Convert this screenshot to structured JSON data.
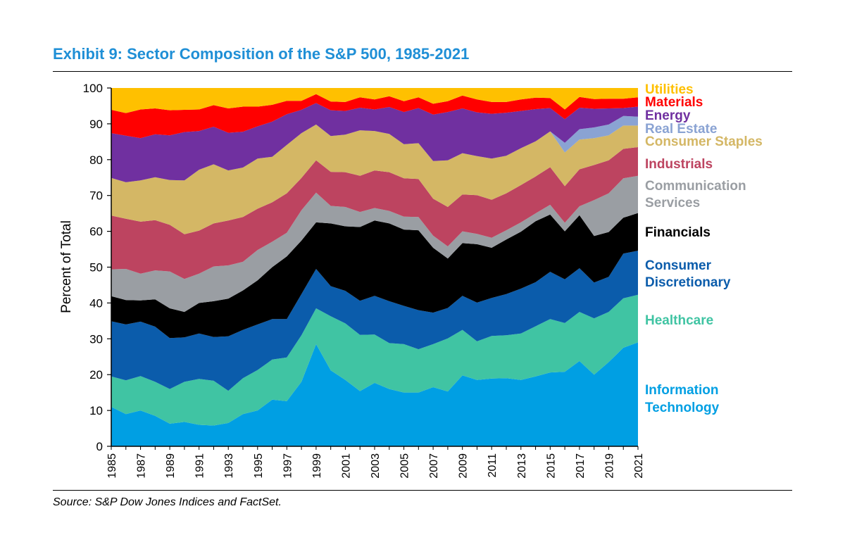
{
  "header": {
    "title": "Exhibit 9: Sector Composition of the S&P 500, 1985-2021"
  },
  "footer": {
    "source": "Source: S&P Dow Jones Indices and FactSet."
  },
  "chart_data": {
    "type": "area",
    "stacked": true,
    "title": "Exhibit 9: Sector Composition of the S&P 500, 1985-2021",
    "xlabel": "",
    "ylabel": "Percent of Total",
    "ylim": [
      0,
      100
    ],
    "yticks": [
      0,
      10,
      20,
      30,
      40,
      50,
      60,
      70,
      80,
      90,
      100
    ],
    "xticks": [
      1985,
      1987,
      1989,
      1991,
      1993,
      1995,
      1997,
      1999,
      2001,
      2003,
      2005,
      2007,
      2009,
      2011,
      2013,
      2015,
      2017,
      2019,
      2021
    ],
    "legend_position": "right",
    "grid": false,
    "x": [
      1985,
      1986,
      1987,
      1988,
      1989,
      1990,
      1991,
      1992,
      1993,
      1994,
      1995,
      1996,
      1997,
      1998,
      1999,
      2000,
      2001,
      2002,
      2003,
      2004,
      2005,
      2006,
      2007,
      2008,
      2009,
      2010,
      2011,
      2012,
      2013,
      2014,
      2015,
      2016,
      2017,
      2018,
      2019,
      2020,
      2021
    ],
    "series": [
      {
        "name": "Information Technology",
        "color": "#009fe3",
        "values": [
          11,
          9,
          10,
          8.5,
          6.3,
          6.8,
          6,
          5.8,
          6.5,
          9,
          10,
          13,
          12.6,
          18,
          28.5,
          21.2,
          18.5,
          15.4,
          17.7,
          16,
          15,
          15,
          16.5,
          15.3,
          19.8,
          18.5,
          18.9,
          19,
          18.5,
          19.5,
          20.6,
          20.8,
          23.8,
          20,
          23.5,
          27.5,
          29
        ]
      },
      {
        "name": "Healthcare",
        "color": "#40c4a3",
        "values": [
          8.5,
          9.4,
          9.6,
          9.5,
          9.7,
          11.2,
          12.8,
          12.5,
          9,
          10,
          11.3,
          11.2,
          12.2,
          13,
          10,
          15.1,
          15.8,
          15.7,
          13.5,
          12.8,
          13.5,
          12.1,
          12,
          14.8,
          12.7,
          10.8,
          11.9,
          12,
          13,
          14,
          14.9,
          13.6,
          13.7,
          15.7,
          14,
          13.8,
          13.3
        ]
      },
      {
        "name": "Consumer Discretionary",
        "color": "#0b5cab",
        "values": [
          15.4,
          15.6,
          15.2,
          15.4,
          14.2,
          12.4,
          12.7,
          12.2,
          15.2,
          13.5,
          12.7,
          11.3,
          10.7,
          11.5,
          11,
          8.4,
          9.1,
          9.5,
          10.8,
          11.7,
          10.7,
          10.9,
          8.8,
          8.5,
          9.5,
          10.8,
          10.6,
          11.5,
          12.5,
          12.3,
          13.2,
          12.2,
          12.2,
          10,
          9.8,
          12.5,
          12.3
        ]
      },
      {
        "name": "Financials",
        "color": "#000000",
        "values": [
          7,
          6.8,
          5.9,
          7.6,
          8.3,
          7.1,
          8.5,
          10,
          10.5,
          11,
          12.3,
          14.5,
          17.5,
          14.9,
          13,
          17.5,
          18,
          20.6,
          21,
          21.7,
          21.3,
          22.3,
          18.1,
          13.8,
          14.7,
          16.3,
          14,
          15.2,
          15.9,
          17,
          16,
          13.4,
          14.8,
          13,
          12.5,
          10,
          10.5
        ]
      },
      {
        "name": "Communication Services",
        "color": "#9a9ea3",
        "values": [
          7.5,
          8.7,
          7.5,
          8.1,
          10.3,
          9.2,
          8.2,
          9.7,
          9.3,
          8,
          8.5,
          7.1,
          6.6,
          8.5,
          8.3,
          4.9,
          5.4,
          4.2,
          3.5,
          3.5,
          3.6,
          3.7,
          3.4,
          3.4,
          3.3,
          2.9,
          2.8,
          2.6,
          2.6,
          2.2,
          2.7,
          2.4,
          2.5,
          10,
          10.8,
          11,
          10.4
        ]
      },
      {
        "name": "Industrials",
        "color": "#bd4460",
        "values": [
          15,
          14,
          14.5,
          14,
          13,
          12.5,
          12,
          12,
          12.5,
          12.5,
          11.5,
          11,
          11,
          9,
          9,
          9.5,
          9.7,
          10.1,
          10.5,
          10.8,
          10.7,
          10.6,
          10.3,
          11,
          10.3,
          10.8,
          10.6,
          10.3,
          10.4,
          10.3,
          10.5,
          10.2,
          10.3,
          9.8,
          9.2,
          8.2,
          8
        ]
      },
      {
        "name": "Consumer Staples",
        "color": "#d4b765",
        "values": [
          10.5,
          10.2,
          11.5,
          12,
          12.5,
          15,
          17,
          16.5,
          14,
          13.8,
          14,
          12.7,
          13.5,
          12.5,
          10,
          10,
          10.5,
          12.7,
          11,
          10.7,
          9.5,
          10,
          10.5,
          13,
          11.5,
          10.9,
          11.5,
          10.5,
          10.3,
          9.8,
          10,
          9.4,
          8.3,
          7.5,
          7,
          6.5,
          6
        ]
      },
      {
        "name": "Real Estate",
        "color": "#8aa3d3",
        "values": [
          0,
          0,
          0,
          0,
          0,
          0,
          0,
          0,
          0,
          0,
          0,
          0,
          0,
          0,
          0,
          0,
          0,
          0,
          0,
          0,
          0,
          0,
          0,
          0,
          0,
          0,
          0,
          0,
          0,
          0,
          0,
          2.7,
          2.9,
          3,
          3,
          2.7,
          2.5
        ]
      },
      {
        "name": "Energy",
        "color": "#7030a0",
        "values": [
          12.5,
          13,
          11.8,
          12,
          12.5,
          13.5,
          10.8,
          10.5,
          10.5,
          10,
          9,
          9.8,
          8.6,
          6.5,
          6,
          7.2,
          6.6,
          6.3,
          6,
          7.5,
          9,
          9.8,
          13,
          13.5,
          12.5,
          12.2,
          12.5,
          12,
          10.4,
          9,
          6.5,
          6.6,
          6,
          5.2,
          4.5,
          2.2,
          2.8
        ]
      },
      {
        "name": "Materials",
        "color": "#ff0000",
        "values": [
          6.5,
          6.3,
          8,
          7.2,
          7,
          6.2,
          6,
          6,
          6.8,
          7,
          5.5,
          4.7,
          3.7,
          2.5,
          2.5,
          2.4,
          2.5,
          2.9,
          2.8,
          3,
          3,
          3,
          3,
          3,
          3.6,
          3.6,
          3.3,
          3,
          3.2,
          3.2,
          2.8,
          2.7,
          3,
          2.7,
          2.7,
          2.6,
          2.6
        ]
      },
      {
        "name": "Utilities",
        "color": "#ffc000",
        "values": [
          6,
          7,
          6,
          6.7,
          6.2,
          6.1,
          6,
          5.8,
          5.7,
          5.2,
          5.2,
          4.7,
          3.4,
          3.6,
          2.2,
          3,
          3.4,
          2.6,
          3,
          2.3,
          3.7,
          3.5,
          3.6,
          3.8,
          3.5,
          3.2,
          3.9,
          3.9,
          2.8,
          2.7,
          2.8,
          3.1,
          2.7,
          2.9,
          3.2,
          2.8,
          2.4
        ]
      }
    ],
    "legend_labels": {
      "utilities": "Utilities",
      "materials": "Materials",
      "energy": "Energy",
      "real_estate": "Real Estate",
      "consumer_staples": "Consumer Staples",
      "industrials": "Industrials",
      "communication_services_line1": "Communication",
      "communication_services_line2": "Services",
      "financials": "Financials",
      "consumer_discretionary_line1": "Consumer",
      "consumer_discretionary_line2": "Discretionary",
      "healthcare": "Healthcare",
      "information_technology_line1": "Information",
      "information_technology_line2": "Technology"
    },
    "legend_colors": {
      "utilities": "#ffc000",
      "materials": "#ff0000",
      "energy": "#7030a0",
      "real_estate": "#8aa3d3",
      "consumer_staples": "#d4b765",
      "industrials": "#bd4460",
      "communication_services": "#9a9ea3",
      "financials": "#000000",
      "consumer_discretionary": "#0b5cab",
      "healthcare": "#40c4a3",
      "information_technology": "#009fe3"
    }
  }
}
